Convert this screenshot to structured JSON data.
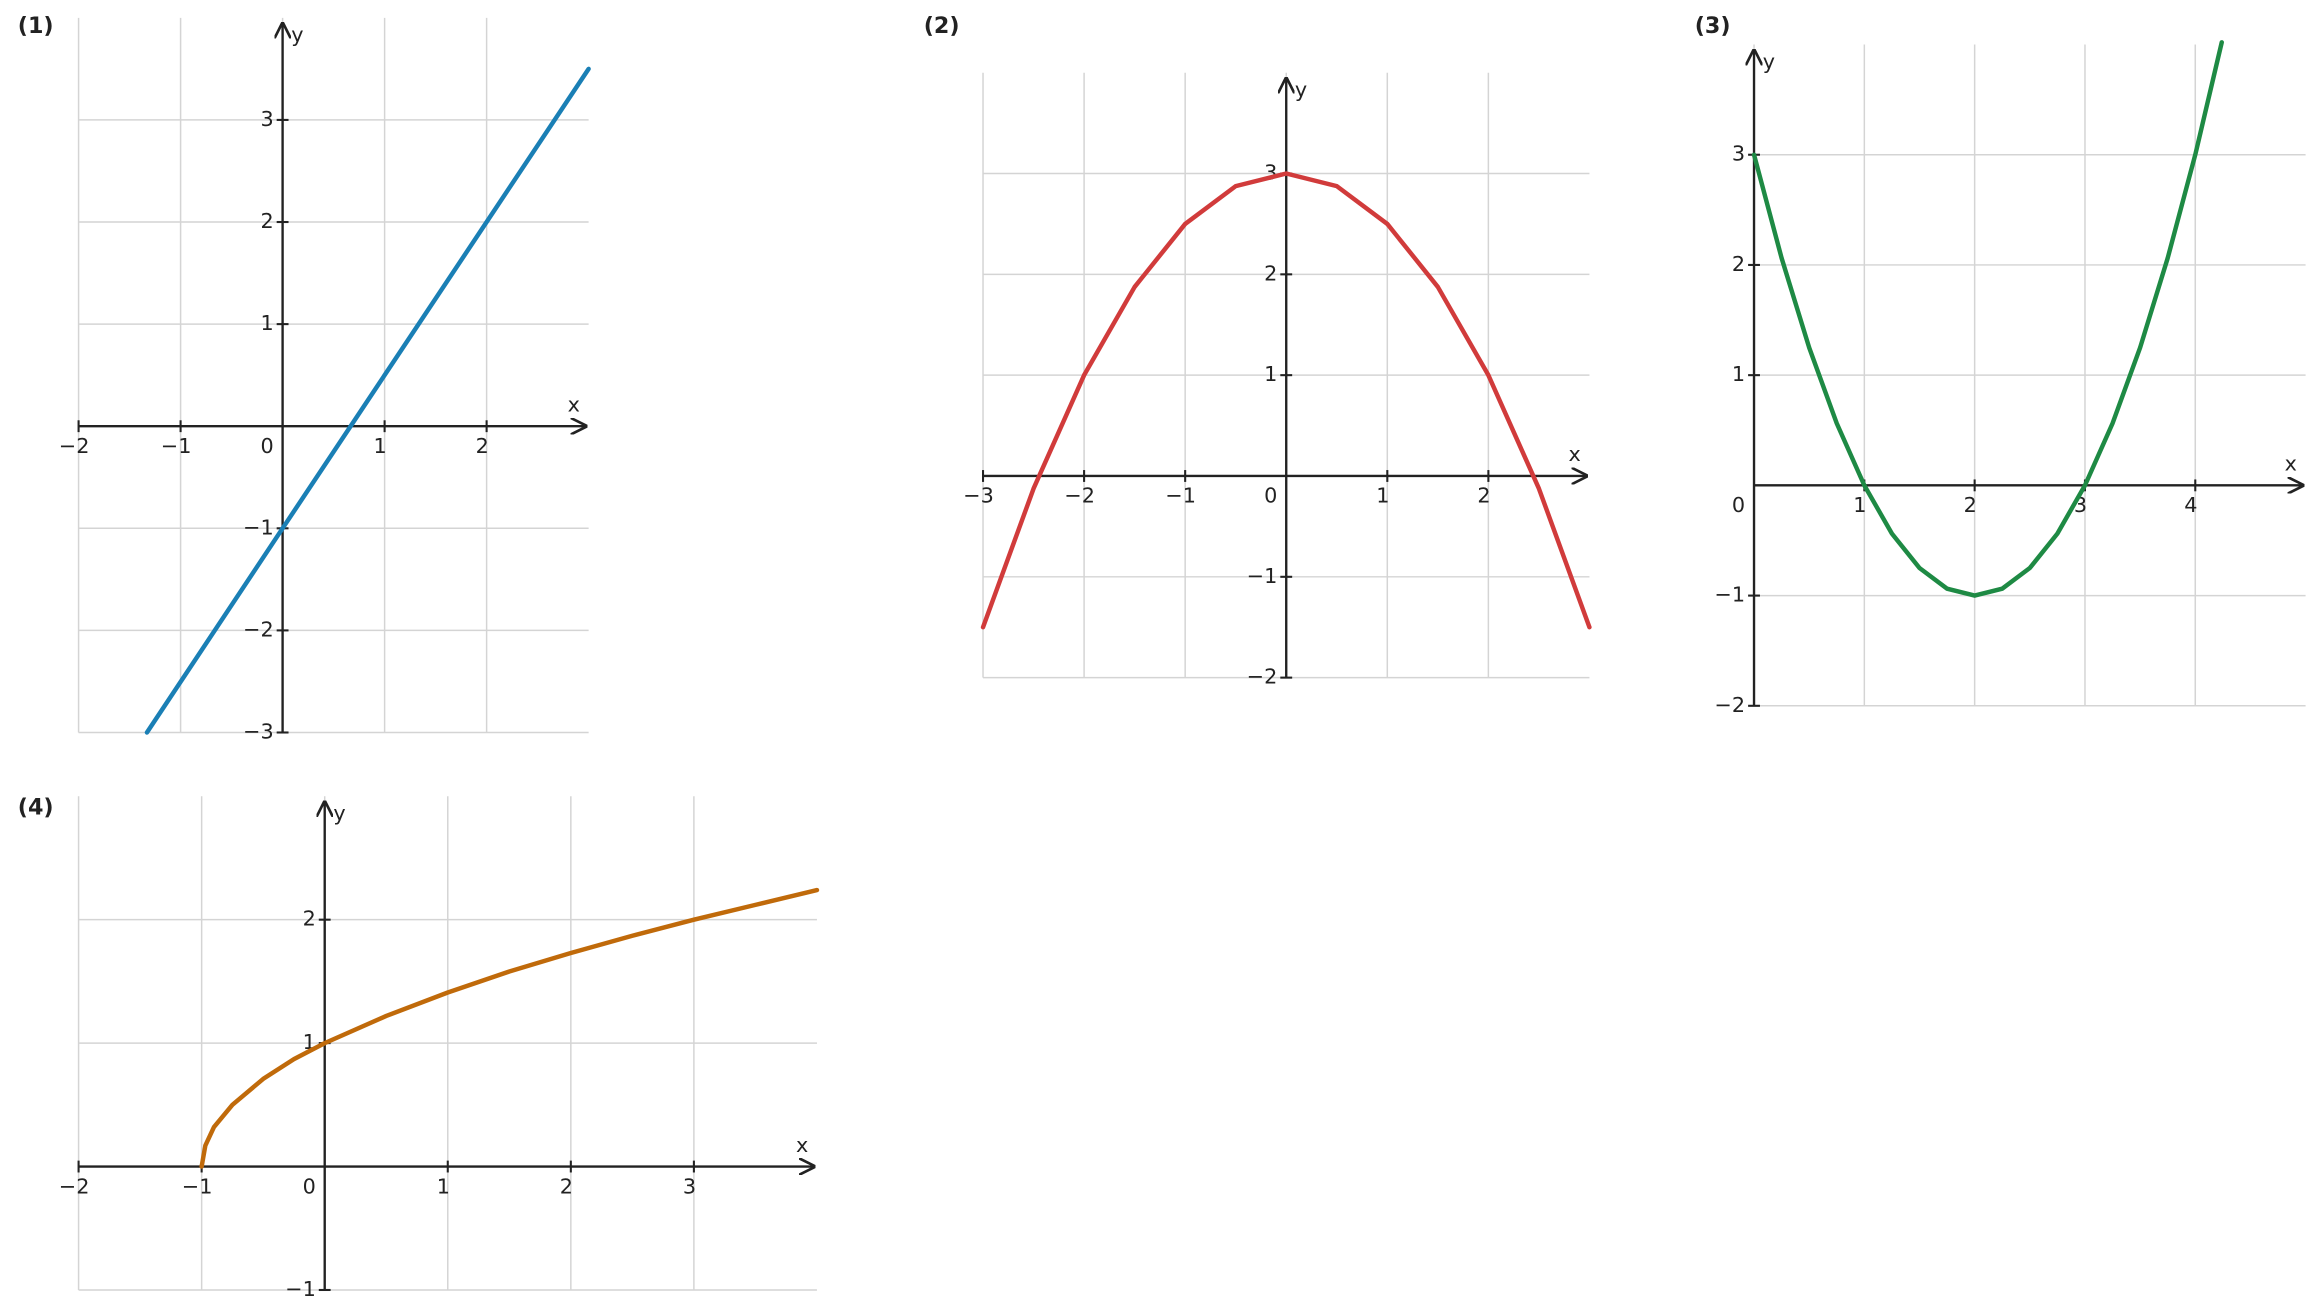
{
  "chart_data": [
    {
      "type": "line",
      "title": "(1)",
      "x_label": "x",
      "y_label": "y",
      "color": "#1a7fb5",
      "grid": true,
      "x": [
        -1.33,
        0,
        1,
        2,
        3
      ],
      "values": [
        -3,
        -1,
        0.5,
        2,
        3.5
      ],
      "xlim": [
        -2,
        3
      ],
      "ylim": [
        -3,
        4
      ],
      "xticks": [
        {
          "value": -2,
          "label": "−2"
        },
        {
          "value": -1,
          "label": "−1"
        },
        0,
        1,
        2
      ],
      "yticks": [
        {
          "value": -3,
          "label": "−3"
        },
        {
          "value": -2,
          "label": "−2"
        },
        {
          "value": -1,
          "label": "−1"
        },
        1,
        2,
        3
      ]
    },
    {
      "type": "line",
      "title": "(2)",
      "x_label": "x",
      "y_label": "y",
      "color": "#d13b3b",
      "grid": true,
      "x": [
        -3,
        -2.5,
        -2,
        -1.5,
        -1,
        -0.5,
        0,
        0.5,
        1,
        1.5,
        2,
        2.5,
        3
      ],
      "values": [
        -1.5,
        -0.125,
        1,
        1.875,
        2.5,
        2.875,
        3,
        2.875,
        2.5,
        1.875,
        1,
        -0.125,
        -1.5
      ],
      "xlim": [
        -3,
        3
      ],
      "ylim": [
        -2,
        4
      ],
      "xticks": [
        {
          "value": -3,
          "label": "−3"
        },
        {
          "value": -2,
          "label": "−2"
        },
        {
          "value": -1,
          "label": "−1"
        },
        0,
        1,
        2
      ],
      "yticks": [
        {
          "value": -2,
          "label": "−2"
        },
        {
          "value": -1,
          "label": "−1"
        },
        1,
        2,
        3
      ]
    },
    {
      "type": "line",
      "title": "(3)",
      "x_label": "x",
      "y_label": "y",
      "color": "#1e8a44",
      "grid": true,
      "x": [
        0,
        0.25,
        0.5,
        0.75,
        1,
        1.25,
        1.5,
        1.75,
        2,
        2.25,
        2.5,
        2.75,
        3,
        3.25,
        3.5,
        3.75,
        4,
        4.24
      ],
      "values": [
        3,
        2.0625,
        1.25,
        0.5625,
        0,
        -0.4375,
        -0.75,
        -0.9375,
        -1,
        -0.9375,
        -0.75,
        -0.4375,
        0,
        0.5625,
        1.25,
        2.0625,
        3,
        4.02
      ],
      "xlim": [
        0,
        5
      ],
      "ylim": [
        -2,
        4
      ],
      "xticks": [
        0,
        1,
        2,
        3,
        4
      ],
      "yticks": [
        {
          "value": -2,
          "label": "−2"
        },
        {
          "value": -1,
          "label": "−1"
        },
        1,
        2,
        3
      ]
    },
    {
      "type": "line",
      "title": "(4)",
      "x_label": "x",
      "y_label": "y",
      "color": "#c06a0a",
      "grid": true,
      "x": [
        -1,
        -0.97,
        -0.9,
        -0.75,
        -0.5,
        -0.25,
        0,
        0.5,
        1,
        1.5,
        2,
        2.5,
        3,
        3.5,
        4
      ],
      "values": [
        0,
        0.17,
        0.32,
        0.5,
        0.71,
        0.87,
        1,
        1.22,
        1.41,
        1.58,
        1.73,
        1.87,
        2,
        2.12,
        2.24
      ],
      "xlim": [
        -2,
        4
      ],
      "ylim": [
        -1,
        3
      ],
      "xticks": [
        {
          "value": -2,
          "label": "−2"
        },
        {
          "value": -1,
          "label": "−1"
        },
        0,
        1,
        2,
        3
      ],
      "yticks": [
        {
          "value": -1,
          "label": "−1"
        },
        1,
        2
      ]
    }
  ]
}
